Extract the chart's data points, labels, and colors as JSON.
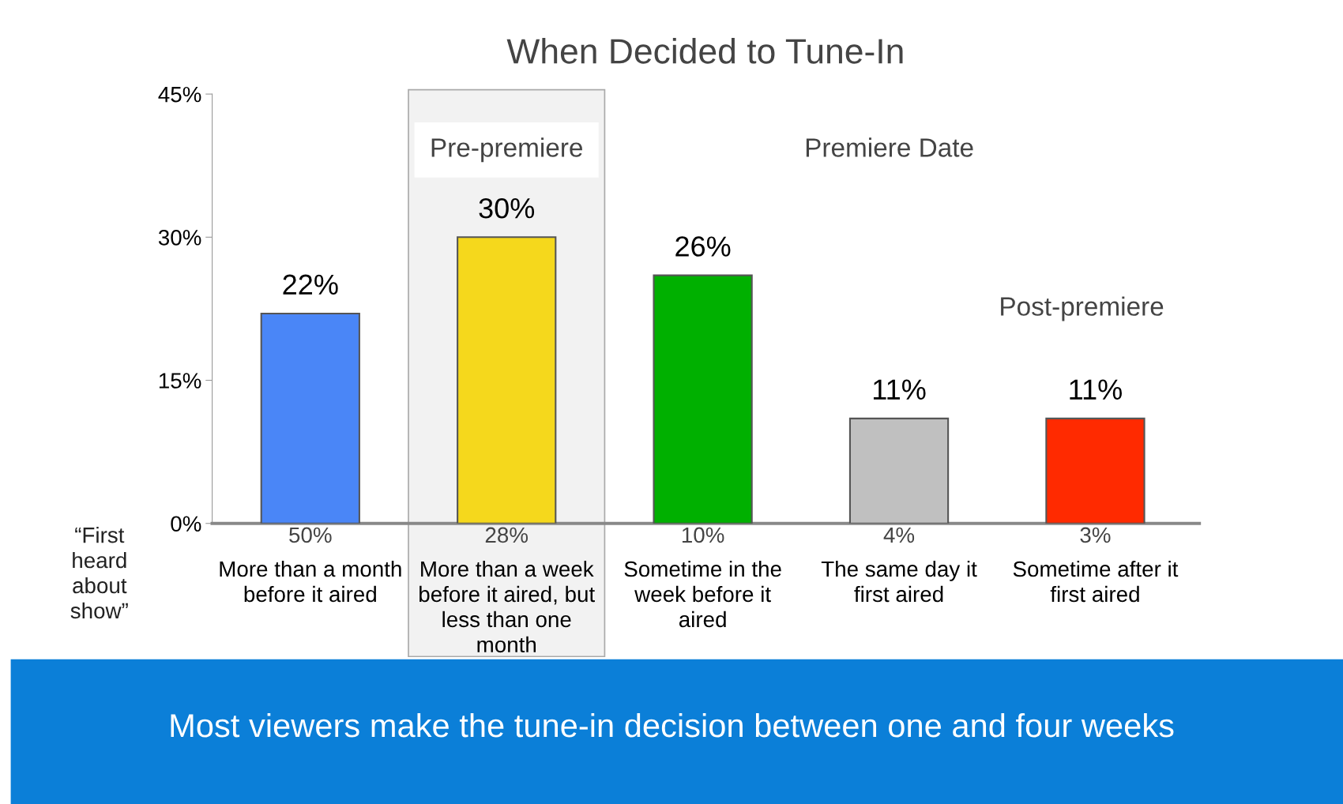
{
  "chart_data": {
    "type": "bar",
    "title": "When Decided to Tune-In",
    "categories": [
      "More than a month\nbefore it aired",
      "More than a week\nbefore it aired, but\nless than one\nmonth",
      "Sometime in the\nweek before it\naired",
      "The same day it\nfirst aired",
      "Sometime after it\nfirst aired"
    ],
    "values": [
      22,
      30,
      26,
      11,
      11
    ],
    "colors": [
      "#4a86f7",
      "#f5d81c",
      "#00b000",
      "#c0c0c0",
      "#ff2a00"
    ],
    "value_labels": [
      "22%",
      "30%",
      "26%",
      "11%",
      "11%"
    ],
    "ylim": [
      0,
      45
    ],
    "yticks": [
      {
        "value": 0,
        "label": "0%"
      },
      {
        "value": 15,
        "label": "15%"
      },
      {
        "value": 30,
        "label": "30%"
      },
      {
        "value": 45,
        "label": "45%"
      }
    ],
    "grid": false,
    "legend": false,
    "bands": [
      {
        "axis": "x",
        "from": "More than a month\nbefore it aired",
        "to": "Sometime in the\nweek before it\naired",
        "label": "Pre-premiere",
        "color": "#f2f2f2"
      }
    ],
    "annotations": [
      "Premiere Date",
      "Post-premiere",
      "“First\nheard\nabout\nshow”",
      "Most viewers make the tune-in decision between one and four weeks",
      {
        "text": "50%",
        "x": "More than a month\nbefore it aired",
        "y": 0
      },
      {
        "text": "28%",
        "x": "More than a week\nbefore it aired, but\nless than one\nmonth",
        "y": 0
      },
      {
        "text": "10%",
        "x": "Sometime in the\nweek before it\naired",
        "y": 0
      },
      {
        "text": "4%",
        "x": "The same day it\nfirst aired",
        "y": 0
      },
      {
        "text": "3%",
        "x": "Sometime after it\nfirst aired",
        "y": 0
      }
    ]
  }
}
